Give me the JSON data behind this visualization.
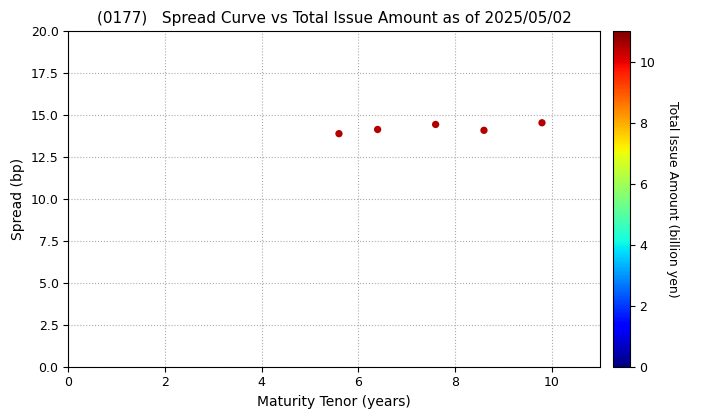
{
  "title": "(0177)   Spread Curve vs Total Issue Amount as of 2025/05/02",
  "xlabel": "Maturity Tenor (years)",
  "ylabel": "Spread (bp)",
  "colorbar_label": "Total Issue Amount (billion yen)",
  "xlim": [
    0,
    11
  ],
  "ylim": [
    0.0,
    20.0
  ],
  "xticks": [
    0,
    2,
    4,
    6,
    8,
    10
  ],
  "yticks": [
    0.0,
    2.5,
    5.0,
    7.5,
    10.0,
    12.5,
    15.0,
    17.5,
    20.0
  ],
  "colorbar_min": 0,
  "colorbar_max": 11,
  "scatter_x": [
    5.6,
    6.4,
    7.6,
    8.6,
    9.8
  ],
  "scatter_y": [
    13.9,
    14.15,
    14.45,
    14.1,
    14.55
  ],
  "scatter_c": [
    10.5,
    10.5,
    10.5,
    10.5,
    10.5
  ],
  "marker_size": 18,
  "background_color": "#ffffff",
  "grid_color": "#aaaaaa",
  "colorbar_ticks": [
    0,
    2,
    4,
    6,
    8,
    10
  ]
}
